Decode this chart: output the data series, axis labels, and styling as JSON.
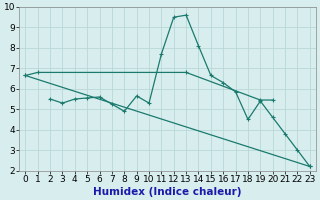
{
  "xlabel": "Humidex (Indice chaleur)",
  "xlim": [
    -0.5,
    23.5
  ],
  "ylim": [
    2,
    10
  ],
  "xticks": [
    0,
    1,
    2,
    3,
    4,
    5,
    6,
    7,
    8,
    9,
    10,
    11,
    12,
    13,
    14,
    15,
    16,
    17,
    18,
    19,
    20,
    21,
    22,
    23
  ],
  "yticks": [
    2,
    3,
    4,
    5,
    6,
    7,
    8,
    9,
    10
  ],
  "bg_color": "#d8eeee",
  "grid_color": "#b8d8d8",
  "line_color": "#1a7a6e",
  "xlabel_color": "#1a1aaa",
  "line1_x": [
    0,
    1,
    13,
    19,
    20
  ],
  "line1_y": [
    6.65,
    6.8,
    6.8,
    5.45,
    5.45
  ],
  "line2_x": [
    2,
    3,
    4,
    5,
    6,
    7,
    8,
    9,
    10,
    11,
    12,
    13,
    14,
    15,
    16,
    17,
    18,
    19,
    20,
    21,
    22,
    23
  ],
  "line2_y": [
    5.5,
    5.3,
    5.5,
    5.55,
    5.6,
    5.25,
    4.9,
    5.65,
    5.3,
    7.7,
    9.5,
    9.6,
    8.1,
    6.65,
    6.3,
    5.85,
    4.5,
    5.4,
    4.6,
    3.8,
    3.0,
    2.2
  ],
  "line3_x": [
    0,
    23
  ],
  "line3_y": [
    6.65,
    2.2
  ],
  "tick_fontsize": 6.5,
  "label_fontsize": 7.5
}
